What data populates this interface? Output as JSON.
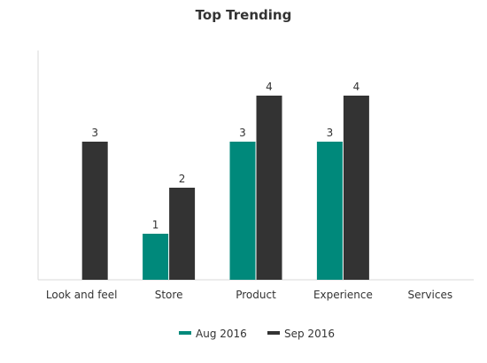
{
  "chart_data": {
    "type": "bar",
    "title": "Top Trending",
    "xlabel": "",
    "ylabel": "",
    "categories": [
      "Look and feel",
      "Store",
      "Product",
      "Experience",
      "Services"
    ],
    "series": [
      {
        "name": "Aug 2016",
        "color": "#00897b",
        "values": [
          null,
          1,
          3,
          3,
          null
        ]
      },
      {
        "name": "Sep 2016",
        "color": "#333333",
        "values": [
          3,
          2,
          4,
          4,
          null
        ]
      }
    ],
    "ylim": [
      0,
      5
    ],
    "grid": false,
    "legend": "bottom",
    "data_labels": true
  }
}
